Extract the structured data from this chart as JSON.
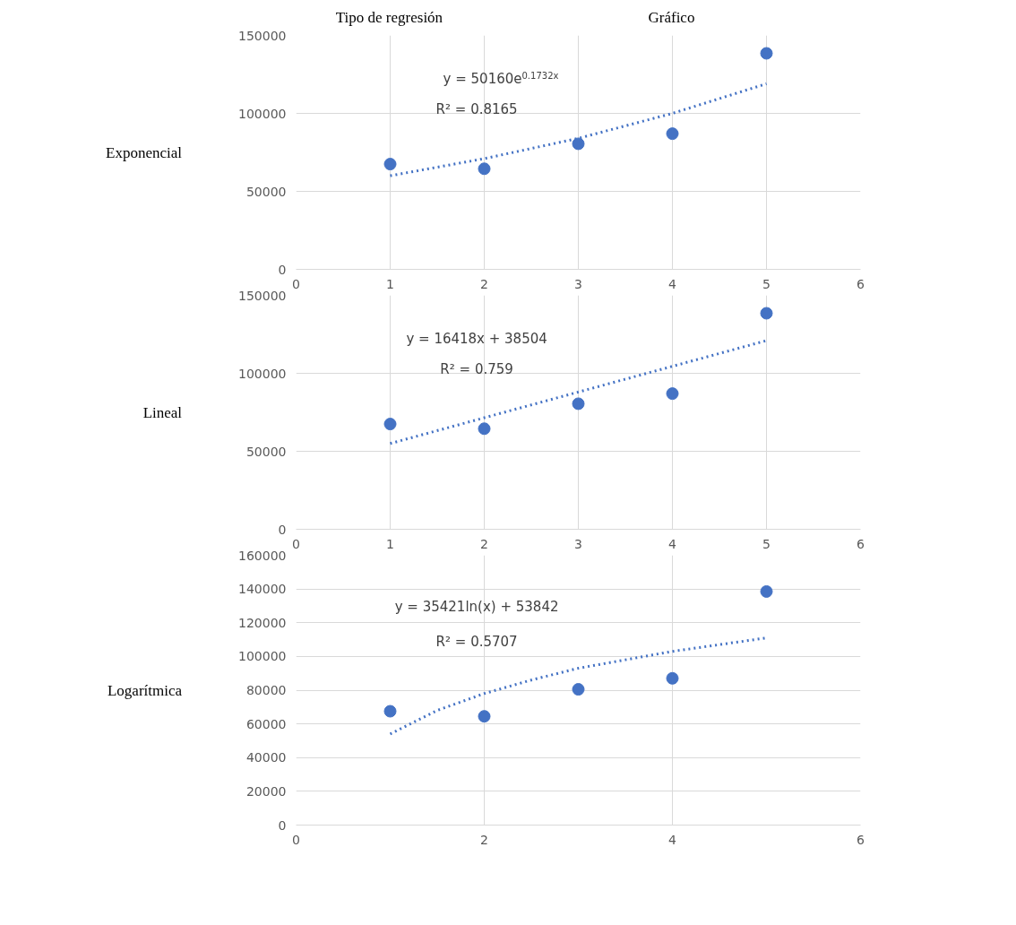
{
  "chart_data": [
    {
      "type": "other",
      "annotations": [
        "Tipo de regresión",
        "Gráfico"
      ]
    },
    {
      "type": "scatter",
      "ylabel": "Exponencial",
      "annotations": [
        "y = 50160e$^{0.1732x}$",
        "R² = 0.8165"
      ],
      "xlim": [
        0,
        6
      ],
      "xticks": [
        0,
        1,
        2,
        3,
        4,
        5,
        6
      ],
      "ylim": [
        0,
        150000
      ],
      "yticks": [
        0,
        50000,
        100000,
        150000
      ],
      "grid": true,
      "series": [
        {
          "color": "#4472c4",
          "marker": "circle",
          "x": [
            1,
            2,
            3,
            4,
            5
          ],
          "values": [
            67500,
            64500,
            80500,
            87000,
            138500
          ]
        },
        {
          "type": "line",
          "color": "#4472c4",
          "marker": "none",
          "line_style": "dotted",
          "x": [
            1,
            2,
            3,
            4,
            5
          ],
          "values": [
            60000,
            71000,
            84000,
            100000,
            119000
          ]
        }
      ]
    },
    {
      "type": "scatter",
      "ylabel": "Lineal",
      "annotations": [
        "y = 16418x + 38504",
        "R² = 0.759"
      ],
      "xlim": [
        0,
        6
      ],
      "xticks": [
        0,
        1,
        2,
        3,
        4,
        5,
        6
      ],
      "ylim": [
        0,
        150000
      ],
      "yticks": [
        0,
        50000,
        100000,
        150000
      ],
      "grid": true,
      "series": [
        {
          "color": "#4472c4",
          "marker": "circle",
          "x": [
            1,
            2,
            3,
            4,
            5
          ],
          "values": [
            67500,
            64500,
            80500,
            87000,
            138500
          ]
        },
        {
          "type": "line",
          "color": "#4472c4",
          "marker": "none",
          "line_style": "dotted",
          "x": [
            1,
            5
          ],
          "values": [
            55000,
            121000
          ]
        }
      ]
    },
    {
      "type": "scatter",
      "ylabel": "Logarítmica",
      "annotations": [
        "y = 35421ln(x) + 53842",
        "R² = 0.5707"
      ],
      "xlim": [
        0,
        6
      ],
      "xticks": [
        0,
        2,
        4,
        6
      ],
      "ylim": [
        0,
        160000
      ],
      "yticks": [
        0,
        20000,
        40000,
        60000,
        80000,
        100000,
        120000,
        140000,
        160000
      ],
      "grid": true,
      "series": [
        {
          "color": "#4472c4",
          "marker": "circle",
          "x": [
            1,
            2,
            3,
            4,
            5
          ],
          "values": [
            67500,
            64500,
            80500,
            87000,
            138500
          ]
        },
        {
          "type": "line",
          "color": "#4472c4",
          "marker": "none",
          "line_style": "dotted",
          "x": [
            1,
            1.5,
            2,
            2.5,
            3,
            3.5,
            4,
            4.5,
            5
          ],
          "values": [
            54000,
            68000,
            78000,
            86000,
            93000,
            98000,
            103000,
            107000,
            111000
          ]
        }
      ]
    }
  ]
}
